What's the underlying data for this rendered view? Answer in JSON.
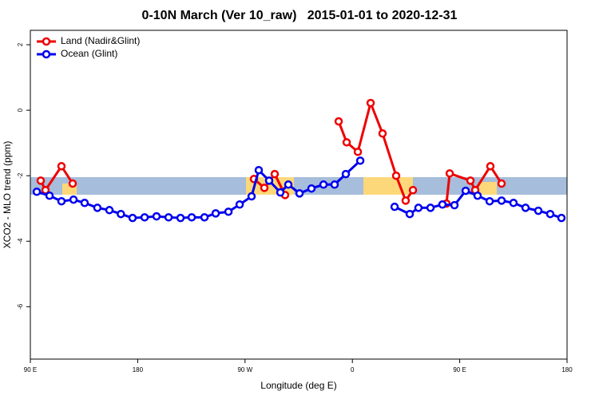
{
  "chart_data": {
    "type": "line",
    "title": "0-10N March (Ver 10_raw)   2015-01-01 to 2020-12-31",
    "x_label": "Longitude (deg E)",
    "y_label": "XCO2 - MLO trend (ppm)",
    "xlim": [
      90,
      540
    ],
    "ylim": [
      -7.6,
      2.44
    ],
    "xticks": [
      {
        "value": 90,
        "label": "90 E"
      },
      180,
      {
        "value": 270,
        "label": "90 W"
      },
      {
        "value": 360,
        "label": "0"
      },
      {
        "value": 450,
        "label": "90 E"
      },
      {
        "value": 540,
        "label": "180"
      }
    ],
    "yticks": [
      2,
      0,
      -2,
      -4,
      -6
    ],
    "legend": "top-left",
    "series": [
      {
        "name": "Land (Nadir&Glint)",
        "color": "#ee0000",
        "x": [
          98.7,
          102.7,
          116.1,
          125.5,
          null,
          277.5,
          286.2,
          294.9,
          303.6,
          null,
          348.5,
          355.2,
          364.6,
          375.3,
          385.3,
          396.7,
          404.7,
          410.8,
          null,
          438.9,
          441.6,
          459.0,
          463.0,
          475.7,
          485.1
        ],
        "values": [
          -2.15,
          -2.44,
          -1.71,
          -2.24,
          null,
          -2.1,
          -2.37,
          -1.95,
          -2.59,
          null,
          -0.34,
          -0.98,
          -1.27,
          0.22,
          -0.71,
          -2.0,
          -2.76,
          -2.44,
          null,
          -2.85,
          -1.93,
          -2.15,
          -2.44,
          -1.71,
          -2.24
        ]
      },
      {
        "name": "Ocean (Glint)",
        "color": "#0000ee",
        "x": [
          95.4,
          106.1,
          116.1,
          126.2,
          135.5,
          146.2,
          156.3,
          165.9,
          175.7,
          185.8,
          195.8,
          205.9,
          215.9,
          225.3,
          236.0,
          245.4,
          256.1,
          265.5,
          275.5,
          281.5,
          290.2,
          299.6,
          306.3,
          315.7,
          325.7,
          335.8,
          345.1,
          354.5,
          366.6,
          null,
          395.4,
          408.1,
          415.4,
          425.5,
          435.5,
          445.6,
          455.0,
          465.0,
          475.1,
          485.1,
          495.1,
          505.2,
          515.9,
          525.9,
          535.3
        ],
        "values": [
          -2.49,
          -2.61,
          -2.78,
          -2.73,
          -2.83,
          -2.98,
          -3.05,
          -3.17,
          -3.29,
          -3.27,
          -3.24,
          -3.27,
          -3.29,
          -3.27,
          -3.27,
          -3.15,
          -3.1,
          -2.88,
          -2.63,
          -1.83,
          -2.15,
          -2.51,
          -2.27,
          -2.54,
          -2.39,
          -2.27,
          -2.27,
          -1.95,
          -1.54,
          null,
          -2.95,
          -3.17,
          -2.98,
          -2.98,
          -2.88,
          -2.9,
          -2.46,
          -2.61,
          -2.78,
          -2.76,
          -2.83,
          -2.98,
          -3.07,
          -3.17,
          -3.29
        ]
      }
    ]
  }
}
